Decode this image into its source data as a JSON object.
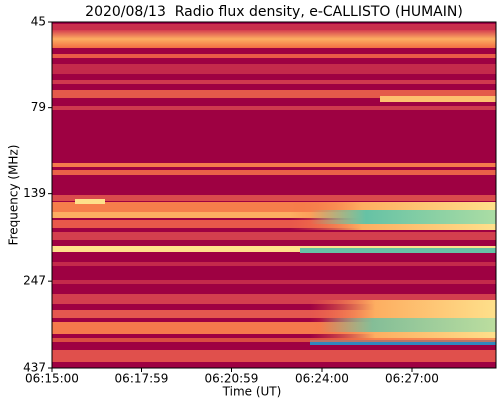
{
  "chart_data": {
    "type": "spectrogram",
    "title": "2020/08/13  Radio flux density, e-CALLISTO (HUMAIN)",
    "x_label": "Time (UT)",
    "y_label": "Frequency (MHz)",
    "xlim": [
      "06:15:00",
      "06:29:48"
    ],
    "xticks": [
      "06:15:00",
      "06:17:59",
      "06:20:59",
      "06:24:00",
      "06:27:00"
    ],
    "ylim": [
      45,
      437
    ],
    "yscale": "log",
    "y_inverted": true,
    "yticks": [
      45,
      79,
      139,
      247,
      437
    ]
  }
}
